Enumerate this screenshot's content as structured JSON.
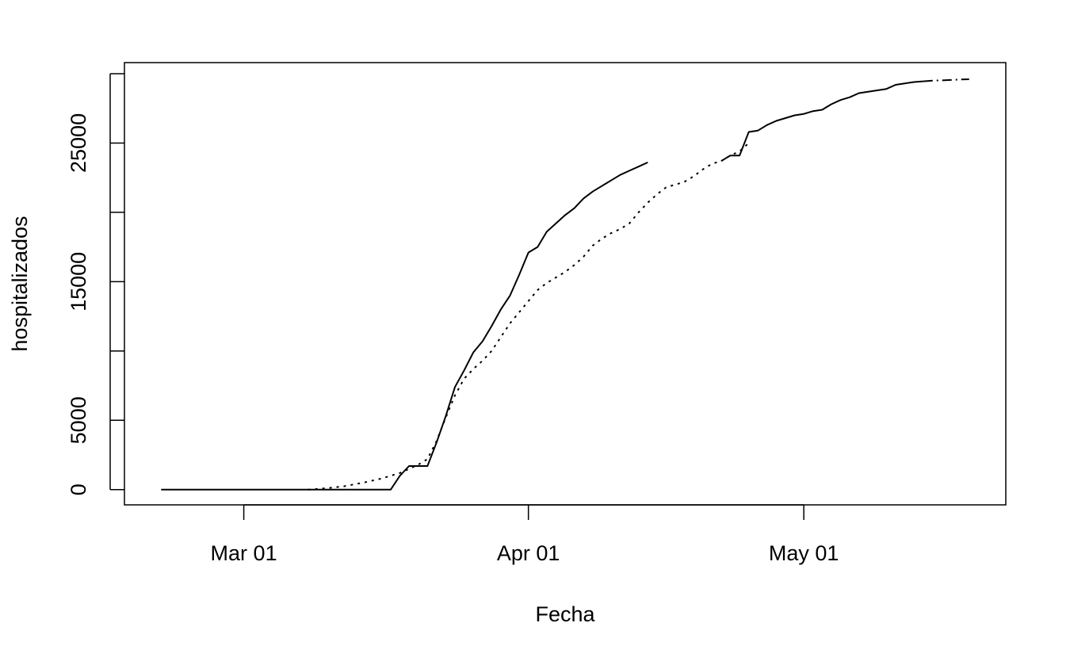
{
  "chart_data": {
    "type": "line",
    "title": "",
    "xlabel": "Fecha",
    "ylabel": "hospitalizados",
    "x_ticks": [
      {
        "date": "2020-03-01",
        "label": "Mar 01"
      },
      {
        "date": "2020-04-01",
        "label": "Apr 01"
      },
      {
        "date": "2020-05-01",
        "label": "May 01"
      }
    ],
    "y_ticks": [
      0,
      5000,
      15000,
      25000
    ],
    "xlim": [
      "2020-02-17",
      "2020-05-23"
    ],
    "ylim": [
      -1100,
      30800
    ],
    "grid": false,
    "legend": "none",
    "colors": {
      "line": "#000000",
      "axis": "#000000",
      "background": "#ffffff"
    },
    "series": [
      {
        "style": "solid",
        "points": [
          [
            "2020-02-21",
            0
          ],
          [
            "2020-03-05",
            0
          ],
          [
            "2020-03-15",
            0
          ],
          [
            "2020-03-17",
            0
          ],
          [
            "2020-03-18",
            1000
          ],
          [
            "2020-03-19",
            1700
          ],
          [
            "2020-03-20",
            1700
          ],
          [
            "2020-03-21",
            1700
          ],
          [
            "2020-03-22",
            3400
          ],
          [
            "2020-03-23",
            5300
          ],
          [
            "2020-03-24",
            7400
          ],
          [
            "2020-03-25",
            8600
          ],
          [
            "2020-03-26",
            9900
          ],
          [
            "2020-03-27",
            10700
          ],
          [
            "2020-03-28",
            11800
          ],
          [
            "2020-03-29",
            13000
          ],
          [
            "2020-03-30",
            14000
          ],
          [
            "2020-03-31",
            15500
          ],
          [
            "2020-04-01",
            17100
          ],
          [
            "2020-04-02",
            17500
          ],
          [
            "2020-04-03",
            18600
          ],
          [
            "2020-04-04",
            19200
          ],
          [
            "2020-04-05",
            19800
          ],
          [
            "2020-04-06",
            20300
          ],
          [
            "2020-04-07",
            21000
          ],
          [
            "2020-04-08",
            21500
          ],
          [
            "2020-04-09",
            21900
          ],
          [
            "2020-04-10",
            22300
          ],
          [
            "2020-04-11",
            22700
          ],
          [
            "2020-04-12",
            23000
          ],
          [
            "2020-04-13",
            23300
          ],
          [
            "2020-04-14",
            23600
          ]
        ]
      },
      {
        "style": "dotted",
        "points": [
          [
            "2020-03-08",
            0
          ],
          [
            "2020-03-10",
            100
          ],
          [
            "2020-03-12",
            250
          ],
          [
            "2020-03-14",
            500
          ],
          [
            "2020-03-16",
            800
          ],
          [
            "2020-03-18",
            1200
          ],
          [
            "2020-03-20",
            1800
          ],
          [
            "2020-03-21",
            2200
          ],
          [
            "2020-03-22",
            3500
          ],
          [
            "2020-03-23",
            5200
          ],
          [
            "2020-03-24",
            6800
          ],
          [
            "2020-03-25",
            8000
          ],
          [
            "2020-03-26",
            8700
          ],
          [
            "2020-03-27",
            9300
          ],
          [
            "2020-03-28",
            10000
          ],
          [
            "2020-03-29",
            11000
          ],
          [
            "2020-03-30",
            12000
          ],
          [
            "2020-03-31",
            12800
          ],
          [
            "2020-04-01",
            13600
          ],
          [
            "2020-04-02",
            14400
          ],
          [
            "2020-04-03",
            14900
          ],
          [
            "2020-04-04",
            15300
          ],
          [
            "2020-04-05",
            15700
          ],
          [
            "2020-04-06",
            16200
          ],
          [
            "2020-04-07",
            16800
          ],
          [
            "2020-04-08",
            17600
          ],
          [
            "2020-04-09",
            18100
          ],
          [
            "2020-04-10",
            18500
          ],
          [
            "2020-04-11",
            18800
          ],
          [
            "2020-04-12",
            19200
          ],
          [
            "2020-04-13",
            20000
          ],
          [
            "2020-04-14",
            20700
          ],
          [
            "2020-04-15",
            21300
          ],
          [
            "2020-04-16",
            21800
          ],
          [
            "2020-04-17",
            22000
          ],
          [
            "2020-04-18",
            22200
          ],
          [
            "2020-04-19",
            22600
          ],
          [
            "2020-04-20",
            23100
          ],
          [
            "2020-04-21",
            23500
          ],
          [
            "2020-04-22",
            23700
          ],
          [
            "2020-04-23",
            24100
          ],
          [
            "2020-04-24",
            24400
          ],
          [
            "2020-04-25",
            25000
          ]
        ]
      },
      {
        "style": "solid",
        "points": [
          [
            "2020-04-22",
            23700
          ],
          [
            "2020-04-23",
            24100
          ],
          [
            "2020-04-24",
            24100
          ],
          [
            "2020-04-25",
            25800
          ],
          [
            "2020-04-26",
            25900
          ],
          [
            "2020-04-27",
            26300
          ],
          [
            "2020-04-28",
            26600
          ],
          [
            "2020-04-29",
            26800
          ],
          [
            "2020-04-30",
            27000
          ],
          [
            "2020-05-01",
            27100
          ],
          [
            "2020-05-02",
            27300
          ],
          [
            "2020-05-03",
            27400
          ],
          [
            "2020-05-04",
            27800
          ],
          [
            "2020-05-05",
            28100
          ],
          [
            "2020-05-06",
            28300
          ],
          [
            "2020-05-07",
            28600
          ],
          [
            "2020-05-08",
            28700
          ],
          [
            "2020-05-09",
            28800
          ],
          [
            "2020-05-10",
            28900
          ],
          [
            "2020-05-11",
            29200
          ],
          [
            "2020-05-12",
            29300
          ],
          [
            "2020-05-13",
            29400
          ],
          [
            "2020-05-14",
            29450
          ]
        ]
      },
      {
        "style": "dashdot",
        "points": [
          [
            "2020-05-14",
            29450
          ],
          [
            "2020-05-15",
            29500
          ],
          [
            "2020-05-16",
            29520
          ],
          [
            "2020-05-17",
            29550
          ],
          [
            "2020-05-18",
            29580
          ],
          [
            "2020-05-19",
            29600
          ]
        ]
      }
    ]
  }
}
